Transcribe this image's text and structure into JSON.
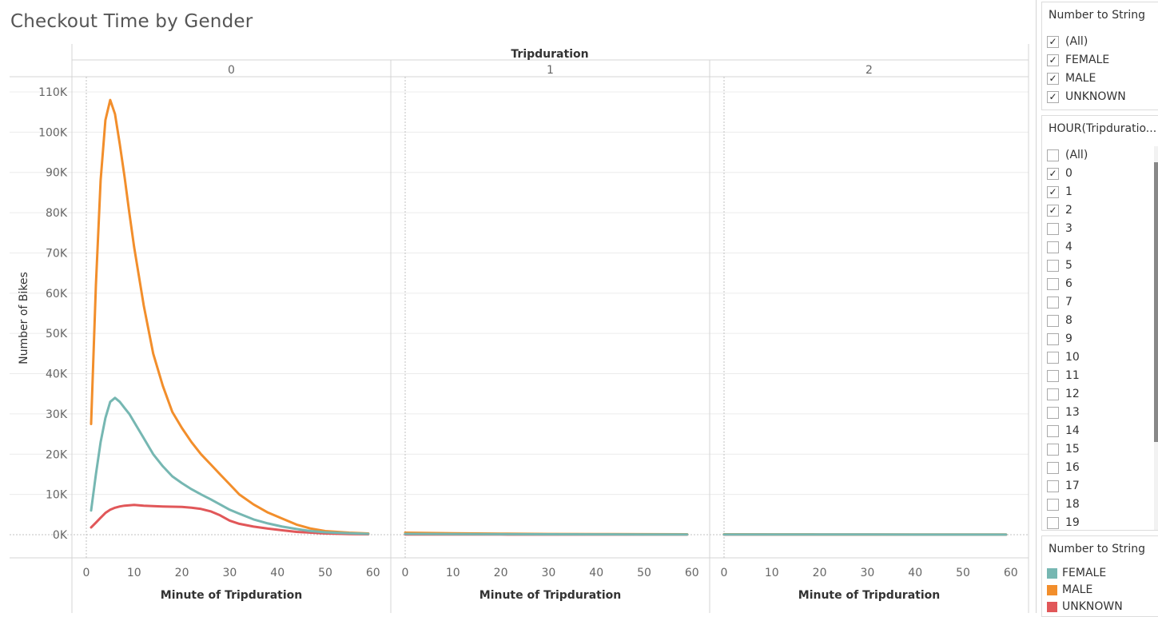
{
  "title": "Checkout Time by Gender",
  "chart_data": {
    "type": "line",
    "column_header": "Tripduration",
    "panels": [
      "0",
      "1",
      "2"
    ],
    "xlabel": "Minute of Tripduration",
    "ylabel": "Number of Bikes",
    "xlim": [
      0,
      60
    ],
    "ylim": [
      0,
      110000
    ],
    "x_ticks": [
      "0",
      "10",
      "20",
      "30",
      "40",
      "50",
      "60"
    ],
    "y_ticks": [
      "0K",
      "10K",
      "20K",
      "30K",
      "40K",
      "50K",
      "60K",
      "70K",
      "80K",
      "90K",
      "100K",
      "110K"
    ],
    "grid": true,
    "series": [
      {
        "name": "MALE",
        "color": "#F28E2B",
        "panels": [
          {
            "x": [
              1,
              2,
              3,
              4,
              5,
              6,
              7,
              8,
              9,
              10,
              12,
              14,
              16,
              18,
              20,
              22,
              24,
              26,
              28,
              30,
              32,
              35,
              38,
              41,
              44,
              47,
              50,
              55,
              59
            ],
            "y": [
              27500,
              62000,
              88000,
              103000,
              108000,
              104500,
              97000,
              89000,
              80000,
              71500,
              57000,
              45000,
              37000,
              30500,
              26500,
              23000,
              20000,
              17500,
              15000,
              12500,
              10000,
              7500,
              5500,
              4000,
              2500,
              1500,
              900,
              500,
              300
            ]
          },
          {
            "x": [
              0,
              10,
              20,
              30,
              40,
              50,
              59
            ],
            "y": [
              500,
              350,
              250,
              180,
              150,
              120,
              100
            ]
          },
          {
            "x": [
              0,
              10,
              20,
              30,
              40,
              50,
              59
            ],
            "y": [
              100,
              80,
              60,
              50,
              40,
              30,
              30
            ]
          }
        ]
      },
      {
        "name": "FEMALE",
        "color": "#76B7B2",
        "panels": [
          {
            "x": [
              1,
              2,
              3,
              4,
              5,
              6,
              7,
              8,
              9,
              10,
              12,
              14,
              16,
              18,
              20,
              22,
              24,
              26,
              28,
              30,
              32,
              35,
              38,
              41,
              44,
              47,
              50,
              55,
              59
            ],
            "y": [
              6000,
              15000,
              23000,
              29000,
              33000,
              34000,
              33000,
              31500,
              30000,
              28000,
              24000,
              20000,
              17000,
              14500,
              12800,
              11300,
              10000,
              8800,
              7500,
              6200,
              5200,
              3800,
              2800,
              2000,
              1400,
              900,
              600,
              350,
              200
            ]
          },
          {
            "x": [
              0,
              10,
              20,
              30,
              40,
              50,
              59
            ],
            "y": [
              200,
              150,
              120,
              100,
              80,
              60,
              50
            ]
          },
          {
            "x": [
              0,
              10,
              20,
              30,
              40,
              50,
              59
            ],
            "y": [
              60,
              50,
              40,
              30,
              25,
              20,
              20
            ]
          }
        ]
      },
      {
        "name": "UNKNOWN",
        "color": "#E15759",
        "panels": [
          {
            "x": [
              1,
              2,
              3,
              4,
              5,
              6,
              7,
              8,
              9,
              10,
              12,
              14,
              16,
              18,
              20,
              22,
              24,
              26,
              28,
              30,
              32,
              35,
              38,
              41,
              44,
              47,
              50,
              55,
              59
            ],
            "y": [
              1800,
              3000,
              4200,
              5400,
              6200,
              6700,
              7000,
              7200,
              7300,
              7400,
              7200,
              7100,
              7000,
              6950,
              6900,
              6700,
              6400,
              5800,
              4800,
              3500,
              2700,
              2000,
              1500,
              1100,
              700,
              500,
              300,
              150,
              100
            ]
          },
          {
            "x": [
              0,
              10,
              20,
              30,
              40,
              50,
              59
            ],
            "y": [
              50,
              40,
              30,
              20,
              15,
              10,
              10
            ]
          },
          {
            "x": [
              0,
              10,
              20,
              30,
              40,
              50,
              59
            ],
            "y": [
              20,
              15,
              10,
              10,
              8,
              5,
              5
            ]
          }
        ]
      }
    ]
  },
  "filter1": {
    "title": "Number to String",
    "items": [
      {
        "label": "(All)",
        "checked": true
      },
      {
        "label": "FEMALE",
        "checked": true
      },
      {
        "label": "MALE",
        "checked": true
      },
      {
        "label": "UNKNOWN",
        "checked": true
      }
    ]
  },
  "filter2": {
    "title": "HOUR(Tripduratio...",
    "items": [
      {
        "label": "(All)",
        "checked": false
      },
      {
        "label": "0",
        "checked": true
      },
      {
        "label": "1",
        "checked": true
      },
      {
        "label": "2",
        "checked": true
      },
      {
        "label": "3",
        "checked": false
      },
      {
        "label": "4",
        "checked": false
      },
      {
        "label": "5",
        "checked": false
      },
      {
        "label": "6",
        "checked": false
      },
      {
        "label": "7",
        "checked": false
      },
      {
        "label": "8",
        "checked": false
      },
      {
        "label": "9",
        "checked": false
      },
      {
        "label": "10",
        "checked": false
      },
      {
        "label": "11",
        "checked": false
      },
      {
        "label": "12",
        "checked": false
      },
      {
        "label": "13",
        "checked": false
      },
      {
        "label": "14",
        "checked": false
      },
      {
        "label": "15",
        "checked": false
      },
      {
        "label": "16",
        "checked": false
      },
      {
        "label": "17",
        "checked": false
      },
      {
        "label": "18",
        "checked": false
      },
      {
        "label": "19",
        "checked": false
      }
    ]
  },
  "legend": {
    "title": "Number to String",
    "items": [
      {
        "label": "FEMALE",
        "color": "#76B7B2"
      },
      {
        "label": "MALE",
        "color": "#F28E2B"
      },
      {
        "label": "UNKNOWN",
        "color": "#E15759"
      }
    ]
  }
}
